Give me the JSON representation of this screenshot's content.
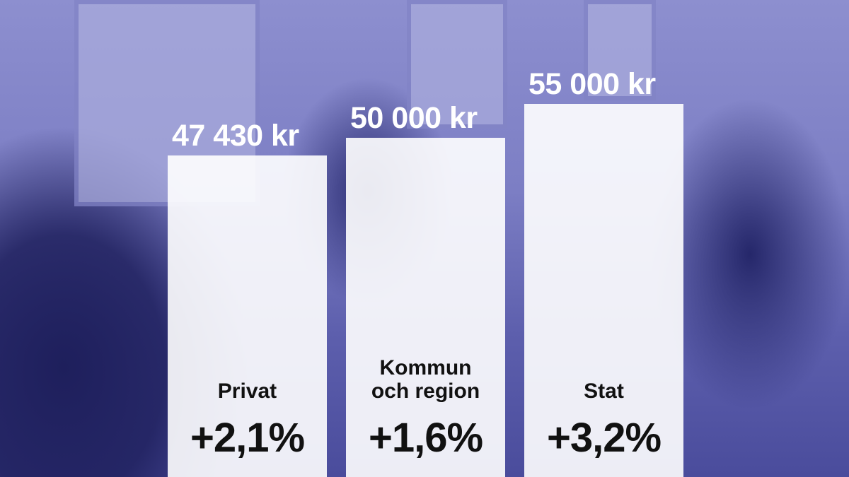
{
  "chart_data": {
    "type": "bar",
    "categories": [
      "Privat",
      "Kommun och region",
      "Stat"
    ],
    "category_lines": [
      [
        "Privat"
      ],
      [
        "Kommun",
        "och region"
      ],
      [
        "Stat"
      ]
    ],
    "values": [
      47430,
      50000,
      55000
    ],
    "value_labels": [
      "47 430 kr",
      "50 000 kr",
      "55 000 kr"
    ],
    "change_labels": [
      "+2,1%",
      "+1,6%",
      "+3,2%"
    ],
    "ylim": [
      0,
      70300
    ],
    "grid": false,
    "bar_color": "#ffffff",
    "background": "office photo with blue duotone tint",
    "tint_color": "#5d5fad"
  }
}
